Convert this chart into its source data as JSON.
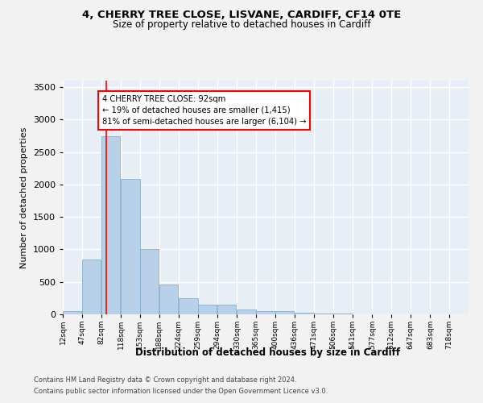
{
  "title": "4, CHERRY TREE CLOSE, LISVANE, CARDIFF, CF14 0TE",
  "subtitle": "Size of property relative to detached houses in Cardiff",
  "xlabel": "Distribution of detached houses by size in Cardiff",
  "ylabel": "Number of detached properties",
  "footer_line1": "Contains HM Land Registry data © Crown copyright and database right 2024.",
  "footer_line2": "Contains public sector information licensed under the Open Government Licence v3.0.",
  "bar_color": "#b8d0e8",
  "bar_edge_color": "#88aece",
  "bg_color": "#e8eef6",
  "grid_color": "#ffffff",
  "annotation_text": "4 CHERRY TREE CLOSE: 92sqm\n← 19% of detached houses are smaller (1,415)\n81% of semi-detached houses are larger (6,104) →",
  "annotation_box_color": "red",
  "vline_x": 92,
  "vline_color": "red",
  "bins": [
    12,
    47,
    82,
    118,
    153,
    188,
    224,
    259,
    294,
    330,
    365,
    400,
    436,
    471,
    506,
    541,
    577,
    612,
    647,
    683,
    718
  ],
  "bar_values": [
    50,
    850,
    2740,
    2080,
    1010,
    460,
    250,
    155,
    155,
    75,
    55,
    45,
    20,
    15,
    10,
    5,
    5,
    5,
    2,
    2
  ],
  "ylim": [
    0,
    3600
  ],
  "yticks": [
    0,
    500,
    1000,
    1500,
    2000,
    2500,
    3000,
    3500
  ]
}
